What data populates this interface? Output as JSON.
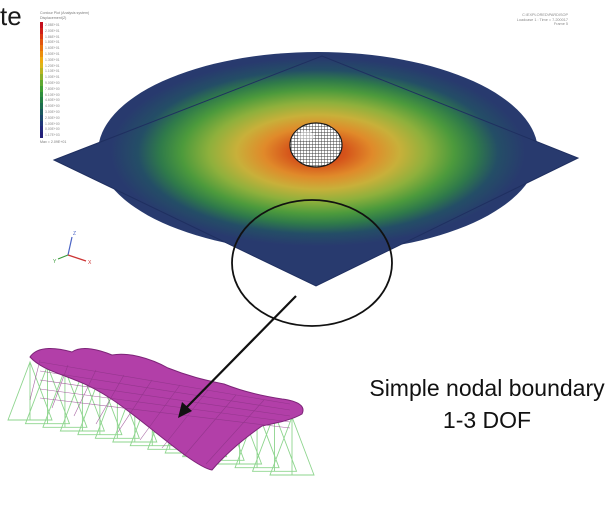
{
  "fragment_text": "te",
  "contour_legend": {
    "title_line1": "Contour Plot (Analysis system)",
    "title_line2": "Displacement(Z)",
    "values": [
      "2.08E+01",
      "2.00E+01",
      "1.86E+01",
      "1.80E+01",
      "1.60E+01",
      "1.50E+01",
      "1.30E+01",
      "1.20E+01",
      "1.10E+01",
      "1.00E+01",
      "9.00E+00",
      "7.80E+00",
      "6.10E+00",
      "4.60E+00",
      "4.00E+00",
      "3.00E+00",
      "2.50E+00",
      "1.00E+00",
      "0.00E+00",
      "1.17E+03"
    ],
    "colors": [
      "#c4101d",
      "#d02018",
      "#dc3a12",
      "#e2560f",
      "#e8720d",
      "#ec8e0c",
      "#eeaa10",
      "#dcb61a",
      "#b8b422",
      "#8cb02a",
      "#5ea831",
      "#3e9e35",
      "#2d8e3c",
      "#237f44",
      "#1c6e4e",
      "#1b5a5e",
      "#1c476c",
      "#1e3778",
      "#22287c",
      "#24207a"
    ],
    "footer": "Max = 2.09E+01"
  },
  "header_info": {
    "line1": "C:\\EXPLORED\\PARDISOP",
    "line2": "Loadcase 1 : Time = 7.200017",
    "line3": "Frame 5"
  },
  "axis_triad": {
    "labels": [
      "Z",
      "X",
      "Y"
    ]
  },
  "colors": {
    "plate_edge": "#283a6e",
    "plate_inner": "#c23a14",
    "zoom_fill": "#b23fa8",
    "support_mesh": "#8ed58e"
  },
  "caption": {
    "line1": "Simple nodal boundary",
    "line2": "1-3 DOF"
  }
}
